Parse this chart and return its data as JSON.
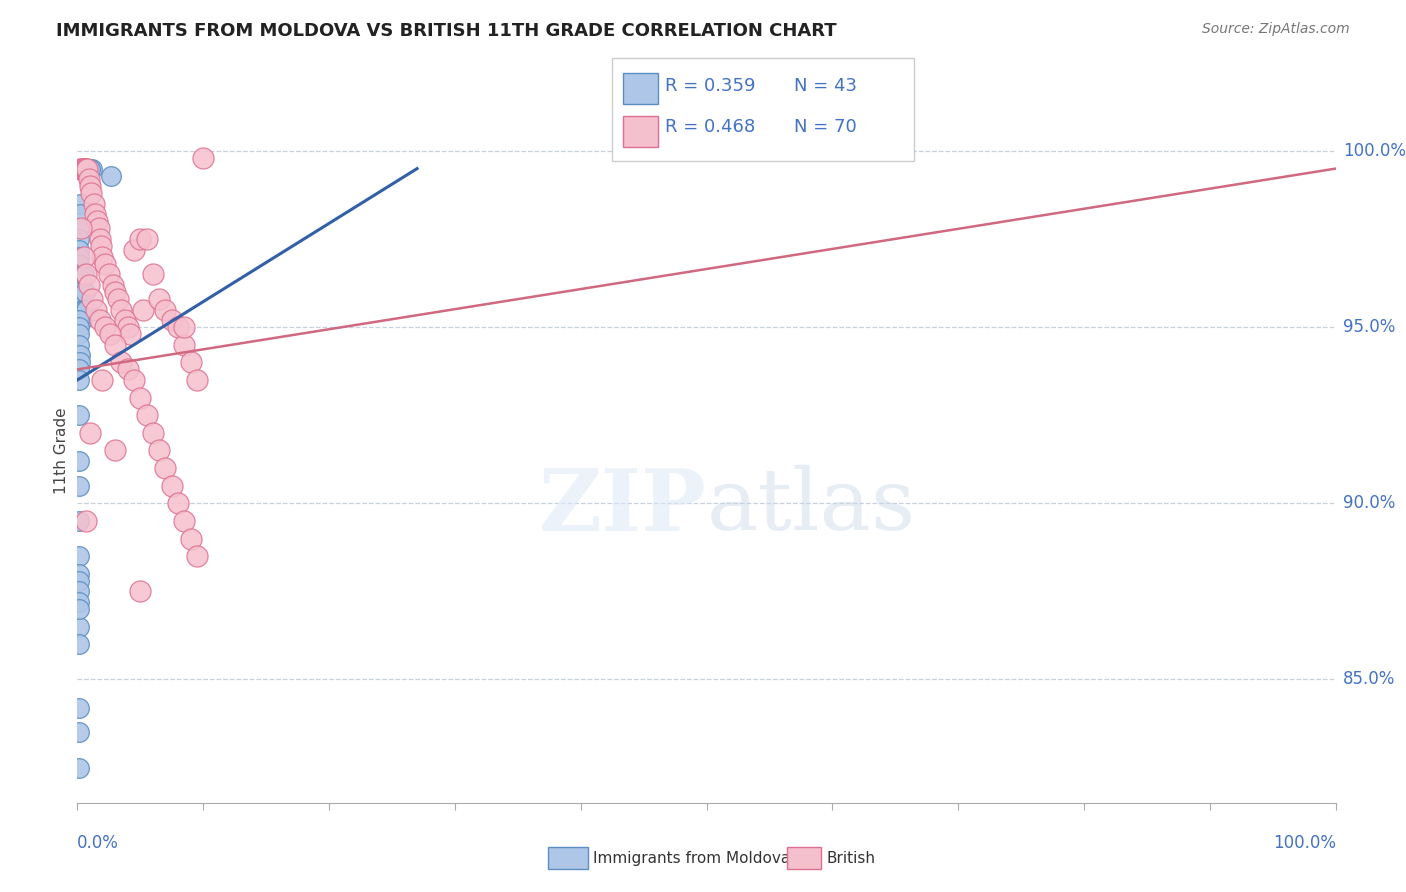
{
  "title": "IMMIGRANTS FROM MOLDOVA VS BRITISH 11TH GRADE CORRELATION CHART",
  "source": "Source: ZipAtlas.com",
  "ylabel": "11th Grade",
  "legend_blue_R": "R = 0.359",
  "legend_blue_N": "N = 43",
  "legend_pink_R": "R = 0.468",
  "legend_pink_N": "N = 70",
  "legend_label_blue": "Immigrants from Moldova",
  "legend_label_pink": "British",
  "blue_color": "#aec6e8",
  "pink_color": "#f5c0ce",
  "blue_edge_color": "#5a8fc4",
  "pink_edge_color": "#e07090",
  "blue_line_color": "#3060a8",
  "pink_line_color": "#d06880",
  "text_color_blue": "#4472c4",
  "axis_label_color": "#4472c4",
  "grid_color": "#c8d0e0",
  "blue_scatter_x": [
    1.2,
    1.0,
    2.7,
    0.2,
    0.2,
    0.15,
    0.15,
    0.15,
    0.1,
    0.1,
    0.1,
    0.2,
    0.3,
    0.3,
    0.4,
    0.4,
    0.5,
    0.5,
    0.6,
    0.7,
    0.1,
    0.1,
    0.1,
    0.15,
    0.2,
    0.25,
    0.1,
    0.1,
    0.1,
    0.1,
    0.1,
    0.15,
    0.1,
    0.1,
    0.1,
    0.1,
    0.1,
    0.1,
    0.15,
    0.15,
    0.1,
    0.1,
    0.1
  ],
  "blue_scatter_y": [
    99.5,
    99.5,
    99.3,
    98.5,
    98.2,
    97.8,
    97.5,
    97.2,
    97.0,
    96.8,
    96.5,
    96.3,
    96.0,
    95.8,
    95.5,
    95.2,
    95.5,
    96.5,
    96.0,
    95.5,
    95.2,
    95.0,
    94.8,
    94.5,
    94.2,
    94.0,
    93.8,
    93.5,
    92.5,
    91.2,
    90.5,
    89.5,
    88.5,
    88.0,
    87.8,
    87.5,
    87.2,
    86.5,
    87.0,
    86.0,
    84.2,
    83.5,
    82.5
  ],
  "pink_scatter_x": [
    0.2,
    0.3,
    0.4,
    0.5,
    0.5,
    0.6,
    0.7,
    0.7,
    0.8,
    0.9,
    1.0,
    1.1,
    1.3,
    1.4,
    1.6,
    1.7,
    1.8,
    1.9,
    2.0,
    2.2,
    2.5,
    2.8,
    3.0,
    3.2,
    3.5,
    3.8,
    4.0,
    4.2,
    4.5,
    5.0,
    5.2,
    5.5,
    6.0,
    6.5,
    7.0,
    7.5,
    8.0,
    8.5,
    9.0,
    9.5,
    10.0,
    0.3,
    0.5,
    0.7,
    0.9,
    1.2,
    1.5,
    1.8,
    2.2,
    2.6,
    3.0,
    3.5,
    4.0,
    4.5,
    5.0,
    5.5,
    6.0,
    6.5,
    7.0,
    7.5,
    8.0,
    8.5,
    9.0,
    9.5,
    8.5,
    5.0,
    3.0,
    2.0,
    1.0,
    0.7
  ],
  "pink_scatter_y": [
    99.5,
    99.5,
    99.5,
    99.5,
    99.5,
    99.5,
    99.5,
    99.5,
    99.5,
    99.2,
    99.0,
    98.8,
    98.5,
    98.2,
    98.0,
    97.8,
    97.5,
    97.3,
    97.0,
    96.8,
    96.5,
    96.2,
    96.0,
    95.8,
    95.5,
    95.2,
    95.0,
    94.8,
    97.2,
    97.5,
    95.5,
    97.5,
    96.5,
    95.8,
    95.5,
    95.2,
    95.0,
    94.5,
    94.0,
    93.5,
    99.8,
    97.8,
    97.0,
    96.5,
    96.2,
    95.8,
    95.5,
    95.2,
    95.0,
    94.8,
    94.5,
    94.0,
    93.8,
    93.5,
    93.0,
    92.5,
    92.0,
    91.5,
    91.0,
    90.5,
    90.0,
    89.5,
    89.0,
    88.5,
    95.0,
    87.5,
    91.5,
    93.5,
    92.0,
    89.5
  ],
  "blue_trend_x": [
    0,
    27
  ],
  "blue_trend_y": [
    93.5,
    99.5
  ],
  "pink_trend_x": [
    0,
    100
  ],
  "pink_trend_y": [
    93.8,
    99.5
  ],
  "xmin": 0,
  "xmax": 100,
  "ymin": 81.5,
  "ymax": 101.5,
  "yticks": [
    100,
    95,
    90,
    85
  ],
  "ytick_labels": [
    "100.0%",
    "95.0%",
    "90.0%",
    "85.0%"
  ]
}
